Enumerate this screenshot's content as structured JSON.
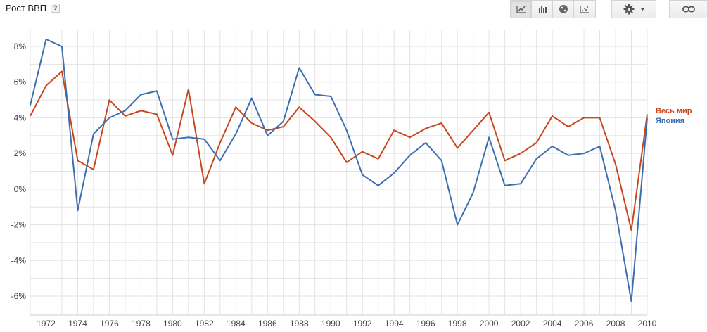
{
  "header": {
    "title": "Рост ВВП",
    "help": "?"
  },
  "toolbar": {
    "views": [
      {
        "icon": "line-chart-icon",
        "active": true
      },
      {
        "icon": "bar-chart-icon",
        "active": false
      },
      {
        "icon": "globe-icon",
        "active": false
      },
      {
        "icon": "scatter-chart-icon",
        "active": false
      }
    ],
    "settings_icon": "gear-icon",
    "settings_dropdown_icon": "caret-down-icon",
    "link_icon": "link-icon"
  },
  "chart_data": {
    "type": "line",
    "title": "Рост ВВП",
    "x": [
      1971,
      1972,
      1973,
      1974,
      1975,
      1976,
      1977,
      1978,
      1979,
      1980,
      1981,
      1982,
      1983,
      1984,
      1985,
      1986,
      1987,
      1988,
      1989,
      1990,
      1991,
      1992,
      1993,
      1994,
      1995,
      1996,
      1997,
      1998,
      1999,
      2000,
      2001,
      2002,
      2003,
      2004,
      2005,
      2006,
      2007,
      2008,
      2009,
      2010
    ],
    "xticks": [
      "1972",
      "1974",
      "1976",
      "1978",
      "1980",
      "1982",
      "1984",
      "1986",
      "1988",
      "1990",
      "1992",
      "1994",
      "1996",
      "1998",
      "2000",
      "2002",
      "2004",
      "2006",
      "2008",
      "2010"
    ],
    "yticks": [
      "8%",
      "6%",
      "4%",
      "2%",
      "0%",
      "-2%",
      "-4%",
      "-6%"
    ],
    "ylim": [
      -7,
      9
    ],
    "grid": true,
    "series": [
      {
        "name": "Весь мир",
        "color": "#c8461c",
        "values": [
          4.1,
          5.8,
          6.6,
          1.6,
          1.1,
          5.0,
          4.1,
          4.4,
          4.2,
          1.9,
          5.6,
          0.3,
          2.6,
          4.6,
          3.7,
          3.3,
          3.5,
          4.6,
          3.8,
          2.9,
          1.5,
          2.1,
          1.7,
          3.3,
          2.9,
          3.4,
          3.7,
          2.3,
          3.3,
          4.3,
          1.6,
          2.0,
          2.6,
          4.1,
          3.5,
          4.0,
          4.0,
          1.4,
          -2.3,
          4.2
        ]
      },
      {
        "name": "Япония",
        "color": "#3e6eb0",
        "values": [
          4.7,
          8.4,
          8.0,
          -1.2,
          3.1,
          4.0,
          4.4,
          5.3,
          5.5,
          2.8,
          2.9,
          2.8,
          1.6,
          3.1,
          5.1,
          3.0,
          3.8,
          6.8,
          5.3,
          5.2,
          3.3,
          0.8,
          0.2,
          0.9,
          1.9,
          2.6,
          1.6,
          -2.0,
          -0.2,
          2.9,
          0.2,
          0.3,
          1.7,
          2.4,
          1.9,
          2.0,
          2.4,
          -1.2,
          -6.3,
          4.0
        ]
      }
    ]
  }
}
